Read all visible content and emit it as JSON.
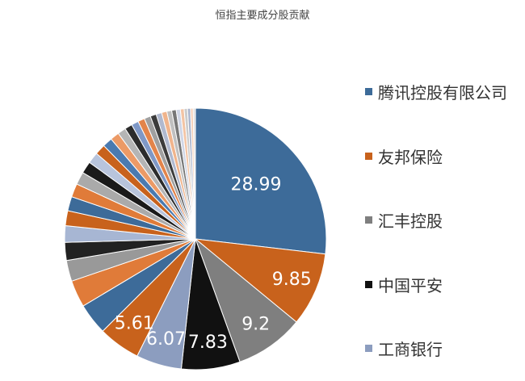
{
  "chart_data": {
    "type": "pie",
    "title": "恒指主要成分股贡献",
    "legend": [
      {
        "name": "腾讯控股有限公司",
        "color": "#3d6b99"
      },
      {
        "name": "友邦保险",
        "color": "#c8621c"
      },
      {
        "name": "汇丰控股",
        "color": "#7f7f7f"
      },
      {
        "name": "中国平安",
        "color": "#111111"
      },
      {
        "name": "工商银行",
        "color": "#8c9dbf"
      }
    ],
    "legend_position": "right",
    "slices": [
      {
        "value": 28.99,
        "label": "28.99",
        "color": "#3d6b99"
      },
      {
        "value": 9.85,
        "label": "9.85",
        "color": "#c8621c"
      },
      {
        "value": 9.2,
        "label": "9.2",
        "color": "#7f7f7f"
      },
      {
        "value": 7.83,
        "label": "7.83",
        "color": "#111111"
      },
      {
        "value": 6.07,
        "label": "6.07",
        "color": "#8c9dbf"
      },
      {
        "value": 5.61,
        "label": "5.61",
        "color": "#c8621c"
      },
      {
        "value": 4.2,
        "label": "",
        "color": "#3d6b99"
      },
      {
        "value": 3.6,
        "label": "",
        "color": "#e07b39"
      },
      {
        "value": 2.8,
        "label": "",
        "color": "#999999"
      },
      {
        "value": 2.4,
        "label": "",
        "color": "#222222"
      },
      {
        "value": 2.2,
        "label": "",
        "color": "#a7b6d3"
      },
      {
        "value": 2.0,
        "label": "",
        "color": "#c8621c"
      },
      {
        "value": 1.9,
        "label": "",
        "color": "#3d6b99"
      },
      {
        "value": 1.8,
        "label": "",
        "color": "#e07b39"
      },
      {
        "value": 1.7,
        "label": "",
        "color": "#aaaaaa"
      },
      {
        "value": 1.6,
        "label": "",
        "color": "#1a1a1a"
      },
      {
        "value": 1.5,
        "label": "",
        "color": "#b8c4dc"
      },
      {
        "value": 1.4,
        "label": "",
        "color": "#c8621c"
      },
      {
        "value": 1.3,
        "label": "",
        "color": "#4a7ab0"
      },
      {
        "value": 1.2,
        "label": "",
        "color": "#ec9a66"
      },
      {
        "value": 1.1,
        "label": "",
        "color": "#b5b5b5"
      },
      {
        "value": 1.0,
        "label": "",
        "color": "#2c2c2c"
      },
      {
        "value": 0.95,
        "label": "",
        "color": "#7f98c6"
      },
      {
        "value": 0.9,
        "label": "",
        "color": "#e3844a"
      },
      {
        "value": 0.85,
        "label": "",
        "color": "#a0a0a0"
      },
      {
        "value": 0.8,
        "label": "",
        "color": "#3c3c3c"
      },
      {
        "value": 0.75,
        "label": "",
        "color": "#b0b9cf"
      },
      {
        "value": 0.7,
        "label": "",
        "color": "#f0b48c"
      },
      {
        "value": 0.65,
        "label": "",
        "color": "#c0c0c0"
      },
      {
        "value": 0.6,
        "label": "",
        "color": "#777777"
      },
      {
        "value": 0.55,
        "label": "",
        "color": "#d0d6e6"
      },
      {
        "value": 0.5,
        "label": "",
        "color": "#f3c4a4"
      },
      {
        "value": 0.45,
        "label": "",
        "color": "#cccccc"
      },
      {
        "value": 0.4,
        "label": "",
        "color": "#aab4cc"
      },
      {
        "value": 0.35,
        "label": "",
        "color": "#f5d0b8"
      },
      {
        "value": 0.3,
        "label": "",
        "color": "#dddddd"
      }
    ]
  }
}
